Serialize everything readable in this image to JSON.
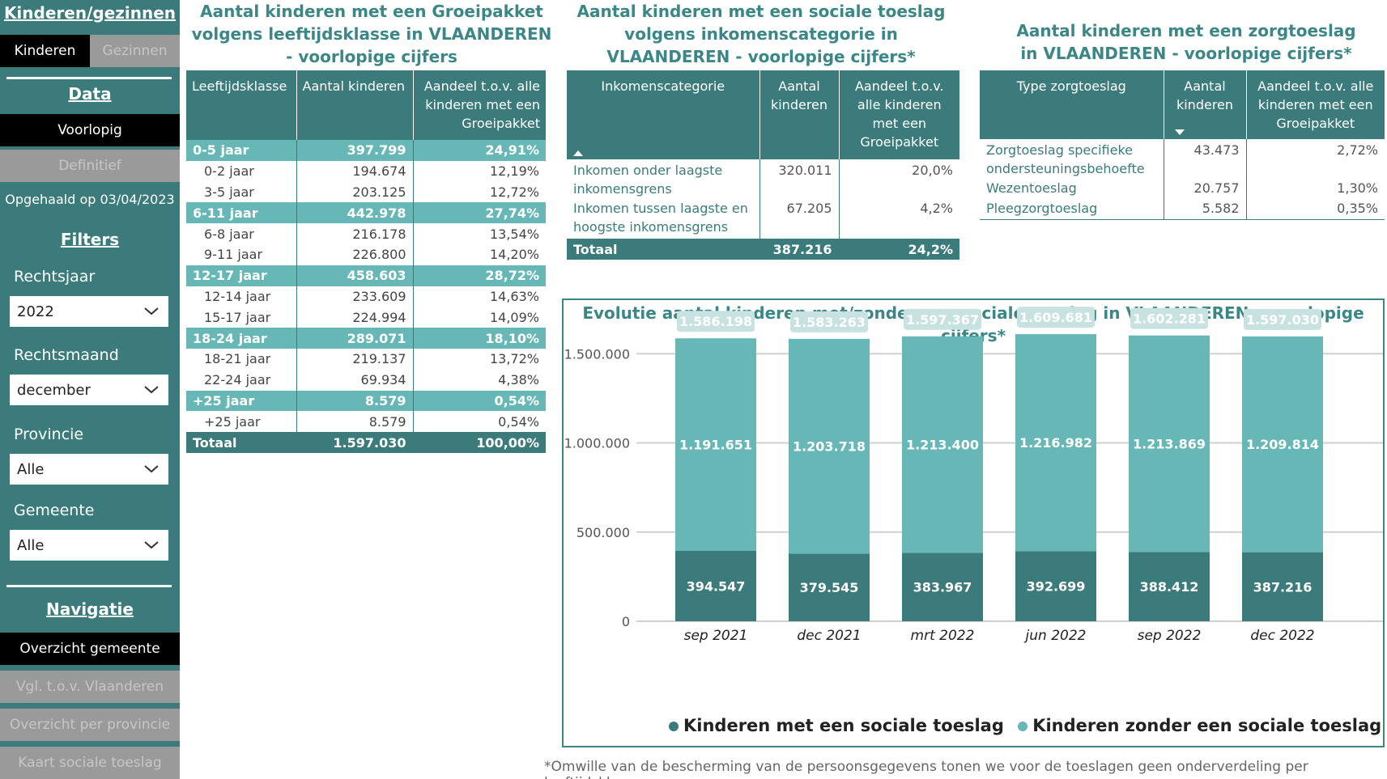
{
  "sidebar": {
    "heading": "Kinderen/gezinnen",
    "tab_children": "Kinderen",
    "tab_families": "Gezinnen",
    "data_heading": "Data",
    "btn_provisional": "Voorlopig",
    "btn_definitive": "Definitief",
    "retrieved": "Opgehaald op 03/04/2023",
    "filters_heading": "Filters",
    "filters": [
      {
        "label": "Rechtsjaar",
        "value": "2022"
      },
      {
        "label": "Rechtsmaand",
        "value": "december"
      },
      {
        "label": "Provincie",
        "value": "Alle"
      },
      {
        "label": "Gemeente",
        "value": "Alle"
      }
    ],
    "nav_heading": "Navigatie",
    "nav": [
      "Overzicht gemeente",
      "Vgl. t.o.v. Vlaanderen",
      "Overzicht per provincie",
      "Kaart sociale toeslag"
    ]
  },
  "age_table": {
    "title": "Aantal kinderen met een Groeipakket volgens leeftijdsklasse in VLAANDEREN - voorlopige cijfers",
    "headers": [
      "Leeftijdsklasse",
      "Aantal kinderen",
      "Aandeel t.o.v. alle kinderen met een Groeipakket"
    ],
    "rows": [
      {
        "type": "grp",
        "c": [
          "0-5 jaar",
          "397.799",
          "24,91%"
        ]
      },
      {
        "type": "sub",
        "c": [
          "0-2 jaar",
          "194.674",
          "12,19%"
        ]
      },
      {
        "type": "sub",
        "c": [
          "3-5 jaar",
          "203.125",
          "12,72%"
        ]
      },
      {
        "type": "grp",
        "c": [
          "6-11 jaar",
          "442.978",
          "27,74%"
        ]
      },
      {
        "type": "sub",
        "c": [
          "6-8 jaar",
          "216.178",
          "13,54%"
        ]
      },
      {
        "type": "sub",
        "c": [
          "9-11 jaar",
          "226.800",
          "14,20%"
        ]
      },
      {
        "type": "grp",
        "c": [
          "12-17 jaar",
          "458.603",
          "28,72%"
        ]
      },
      {
        "type": "sub",
        "c": [
          "12-14 jaar",
          "233.609",
          "14,63%"
        ]
      },
      {
        "type": "sub",
        "c": [
          "15-17 jaar",
          "224.994",
          "14,09%"
        ]
      },
      {
        "type": "grp",
        "c": [
          "18-24 jaar",
          "289.071",
          "18,10%"
        ]
      },
      {
        "type": "sub",
        "c": [
          "18-21 jaar",
          "219.137",
          "13,72%"
        ]
      },
      {
        "type": "sub",
        "c": [
          "22-24 jaar",
          "69.934",
          "4,38%"
        ]
      },
      {
        "type": "grp",
        "c": [
          "+25 jaar",
          "8.579",
          "0,54%"
        ]
      },
      {
        "type": "sub",
        "c": [
          "+25 jaar",
          "8.579",
          "0,54%"
        ]
      },
      {
        "type": "tot",
        "c": [
          "Totaal",
          "1.597.030",
          "100,00%"
        ]
      }
    ]
  },
  "income_table": {
    "title": "Aantal kinderen met een sociale toeslag volgens inkomenscategorie in VLAANDEREN - voorlopige cijfers*",
    "headers": [
      "Inkomenscategorie",
      "Aantal kinderen",
      "Aandeel t.o.v. alle kinderen met een Groeipakket"
    ],
    "rows": [
      [
        "Inkomen onder laagste inkomensgrens",
        "320.011",
        "20,0%"
      ],
      [
        "Inkomen tussen laagste en hoogste inkomensgrens",
        "67.205",
        "4,2%"
      ]
    ],
    "total": [
      "Totaal",
      "387.216",
      "24,2%"
    ]
  },
  "care_table": {
    "title": "Aantal kinderen met een zorgtoeslag in VLAANDEREN - voorlopige cijfers*",
    "headers": [
      "Type zorgtoeslag",
      "Aantal kinderen",
      "Aandeel t.o.v. alle kinderen met een Groeipakket"
    ],
    "rows": [
      [
        "Zorgtoeslag specifieke ondersteuningsbehoefte",
        "43.473",
        "2,72%"
      ],
      [
        "Wezentoeslag",
        "20.757",
        "1,30%"
      ],
      [
        "Pleegzorgtoeslag",
        "5.582",
        "0,35%"
      ]
    ]
  },
  "chart_data": {
    "type": "bar",
    "stacked": true,
    "title": "Evolutie aantal kinderen met/zonder een sociale toeslag in VLAANDEREN - voorlopige cijfers*",
    "categories": [
      "sep 2021",
      "dec 2021",
      "mrt 2022",
      "jun 2022",
      "sep 2022",
      "dec 2022"
    ],
    "series": [
      {
        "name": "Kinderen met een sociale toeslag",
        "values": [
          394547,
          379545,
          383967,
          392699,
          388412,
          387216
        ],
        "labels": [
          "394.547",
          "379.545",
          "383.967",
          "392.699",
          "388.412",
          "387.216"
        ],
        "color": "#3b7b7b"
      },
      {
        "name": "Kinderen zonder een sociale toeslag",
        "values": [
          1191651,
          1203718,
          1213400,
          1216982,
          1213869,
          1209814
        ],
        "labels": [
          "1.191.651",
          "1.203.718",
          "1.213.400",
          "1.216.982",
          "1.213.869",
          "1.209.814"
        ],
        "color": "#68b7b7"
      }
    ],
    "totals": [
      "1.586.198",
      "1.583.263",
      "1.597.367",
      "1.609.681",
      "1.602.281",
      "1.597.030"
    ],
    "yticks": [
      "0",
      "500.000",
      "1.000.000",
      "1.500.000"
    ],
    "ytick_values": [
      0,
      500000,
      1000000,
      1500000
    ],
    "ylim": [
      0,
      1610000
    ],
    "grid": true,
    "legend": "bottom"
  },
  "footnote": "*Omwille van de bescherming van de persoonsgegevens tonen we voor de toeslagen geen onderverdeling per leeftijdsklasse",
  "colors": {
    "dark_teal": "#3b7b7b",
    "light_teal": "#68b7b7",
    "title_teal": "#3b8686"
  }
}
